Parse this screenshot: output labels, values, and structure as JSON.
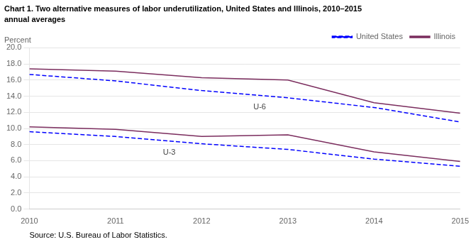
{
  "chart_data": {
    "type": "line",
    "title": "Chart 1. Two alternative measures of labor underutilization, United States and Illinois, 2010–2015",
    "subtitle": "annual averages",
    "ylabel": "Percent",
    "xlabel": "Source: U.S. Bureau of Labor Statistics.",
    "x": [
      2010,
      2011,
      2012,
      2013,
      2014,
      2015
    ],
    "series": [
      {
        "name": "United States",
        "color": "#0000FF",
        "line_style": "dashed",
        "values": [
          16.7,
          15.9,
          14.7,
          13.8,
          12.6,
          10.8
        ]
      },
      {
        "name": "Illinois",
        "color": "#7B2D5E",
        "line_style": "solid",
        "values": [
          17.4,
          17.1,
          16.3,
          16.0,
          13.2,
          11.9
        ]
      },
      {
        "name": "United States",
        "color": "#0000FF",
        "line_style": "dashed",
        "values": [
          9.6,
          9.0,
          8.1,
          7.4,
          6.2,
          5.3
        ]
      },
      {
        "name": "Illinois",
        "color": "#7B2D5E",
        "line_style": "solid",
        "values": [
          10.2,
          9.9,
          9.0,
          9.2,
          7.1,
          5.9
        ]
      }
    ],
    "xlim": [
      2010,
      2015
    ],
    "xticks": [
      2010,
      2011,
      2012,
      2013,
      2014,
      2015
    ],
    "ylim": [
      0,
      20
    ],
    "yticks": [
      {
        "value": 0,
        "label": "0.0"
      },
      {
        "value": 2,
        "label": "2.0"
      },
      {
        "value": 4,
        "label": "4.0"
      },
      {
        "value": 6,
        "label": "6.0"
      },
      {
        "value": 8,
        "label": "8.0"
      },
      {
        "value": 10,
        "label": "10.0"
      },
      {
        "value": 12,
        "label": "12.0"
      },
      {
        "value": 14,
        "label": "14.0"
      },
      {
        "value": 16,
        "label": "16.0"
      },
      {
        "value": 18,
        "label": "18.0"
      },
      {
        "value": 20,
        "label": "20.0"
      }
    ],
    "grid": "y",
    "legend": "upper right",
    "annotations": [
      {
        "text": "U-6",
        "x": 2012.6,
        "y": 12.35
      },
      {
        "text": "U-3",
        "x": 2011.55,
        "y": 6.75
      }
    ]
  }
}
